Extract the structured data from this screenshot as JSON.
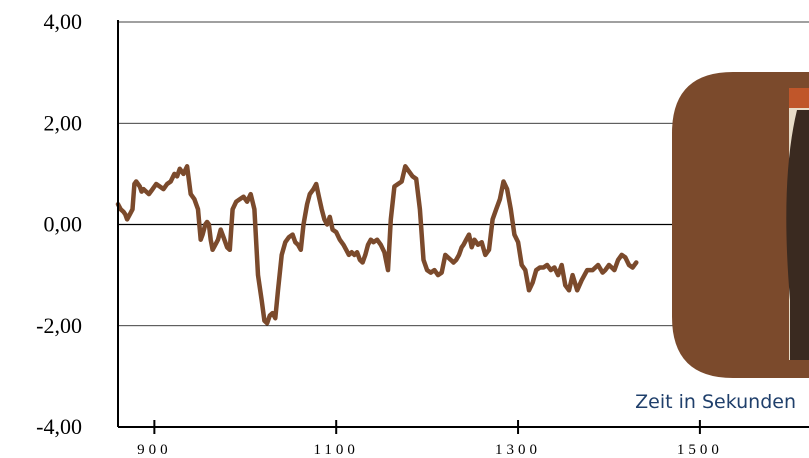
{
  "chart_data": {
    "type": "line",
    "title": "",
    "xlabel": "Zeit in Sekunden",
    "ylabel": "",
    "xlim": [
      860,
      1620
    ],
    "ylim": [
      -4,
      4
    ],
    "y_ticks": [
      {
        "value": 4,
        "label": "4,00"
      },
      {
        "value": 2,
        "label": "2,00"
      },
      {
        "value": 0,
        "label": "0,00"
      },
      {
        "value": -2,
        "label": "-2,00"
      },
      {
        "value": -4,
        "label": "-4,00"
      }
    ],
    "x_ticks": [
      {
        "value": 900,
        "label": "900"
      },
      {
        "value": 1100,
        "label": "1100"
      },
      {
        "value": 1300,
        "label": "1300"
      },
      {
        "value": 1500,
        "label": "1500"
      }
    ],
    "grid": "horizontal",
    "series": [
      {
        "color": "#7b4a2c",
        "x": [
          860,
          863,
          866,
          868,
          870,
          873,
          876,
          878,
          880,
          882,
          884,
          886,
          888,
          891,
          894,
          898,
          902,
          906,
          910,
          914,
          918,
          922,
          925,
          928,
          932,
          936,
          940,
          944,
          948,
          951,
          953,
          956,
          958,
          960,
          962,
          964,
          967,
          970,
          973,
          976,
          980,
          983,
          986,
          990,
          994,
          998,
          1002,
          1006,
          1010,
          1014,
          1018,
          1021,
          1024,
          1027,
          1030,
          1033,
          1036,
          1040,
          1044,
          1048,
          1052,
          1055,
          1058,
          1061,
          1064,
          1068,
          1071,
          1075,
          1078,
          1081,
          1084,
          1087,
          1090,
          1093,
          1096,
          1100,
          1104,
          1108,
          1111,
          1114,
          1117,
          1120,
          1123,
          1126,
          1129,
          1132,
          1135,
          1138,
          1141,
          1145,
          1149,
          1153,
          1157,
          1160,
          1164,
          1168,
          1172,
          1176,
          1180,
          1184,
          1188,
          1192,
          1196,
          1200,
          1204,
          1208,
          1212,
          1216,
          1220,
          1223,
          1226,
          1229,
          1232,
          1235,
          1238,
          1240,
          1243,
          1246,
          1249,
          1252,
          1256,
          1260,
          1264,
          1268,
          1272,
          1276,
          1280,
          1284,
          1288,
          1292,
          1296,
          1300,
          1304,
          1308,
          1312,
          1316,
          1320,
          1324,
          1328,
          1332,
          1336,
          1340,
          1344,
          1348,
          1352,
          1356,
          1360,
          1365,
          1370,
          1376,
          1382,
          1388,
          1393,
          1396,
          1400,
          1403,
          1406,
          1410,
          1414,
          1418,
          1422,
          1426,
          1430
        ],
        "y": [
          0.4,
          0.3,
          0.25,
          0.2,
          0.1,
          0.2,
          0.3,
          0.8,
          0.85,
          0.8,
          0.75,
          0.65,
          0.7,
          0.65,
          0.6,
          0.7,
          0.8,
          0.75,
          0.7,
          0.8,
          0.85,
          1.0,
          0.95,
          1.1,
          1.0,
          1.15,
          0.6,
          0.5,
          0.3,
          -0.3,
          -0.2,
          0.0,
          0.05,
          0.0,
          -0.3,
          -0.5,
          -0.4,
          -0.3,
          -0.1,
          -0.25,
          -0.45,
          -0.5,
          0.3,
          0.45,
          0.5,
          0.55,
          0.45,
          0.6,
          0.3,
          -1.0,
          -1.5,
          -1.9,
          -1.95,
          -1.8,
          -1.75,
          -1.85,
          -1.3,
          -0.6,
          -0.35,
          -0.25,
          -0.2,
          -0.35,
          -0.4,
          -0.5,
          0.0,
          0.4,
          0.6,
          0.7,
          0.8,
          0.55,
          0.3,
          0.1,
          0.0,
          0.15,
          -0.1,
          -0.15,
          -0.3,
          -0.4,
          -0.5,
          -0.6,
          -0.55,
          -0.6,
          -0.55,
          -0.7,
          -0.75,
          -0.6,
          -0.4,
          -0.3,
          -0.35,
          -0.3,
          -0.4,
          -0.55,
          -0.9,
          0.1,
          0.75,
          0.8,
          0.85,
          1.15,
          1.05,
          0.95,
          0.9,
          0.3,
          -0.7,
          -0.9,
          -0.95,
          -0.9,
          -1.0,
          -0.95,
          -0.6,
          -0.65,
          -0.7,
          -0.75,
          -0.7,
          -0.6,
          -0.45,
          -0.4,
          -0.3,
          -0.2,
          -0.45,
          -0.3,
          -0.4,
          -0.35,
          -0.6,
          -0.5,
          0.1,
          0.3,
          0.5,
          0.85,
          0.7,
          0.3,
          -0.2,
          -0.35,
          -0.8,
          -0.9,
          -1.3,
          -1.15,
          -0.9,
          -0.85,
          -0.85,
          -0.8,
          -0.9,
          -0.85,
          -1.0,
          -0.8,
          -1.2,
          -1.3,
          -1.0,
          -1.3,
          -1.1,
          -0.9,
          -0.9,
          -0.8,
          -0.95,
          -0.9,
          -0.8,
          -0.85,
          -0.9,
          -0.7,
          -0.6,
          -0.65,
          -0.8,
          -0.85,
          -0.75
        ]
      }
    ]
  },
  "overlay": {
    "fill": "#7b4a2c",
    "inner_fill": "#e8dcc8",
    "inner_shadow": "#3a2a20",
    "accent": "#c0562a"
  }
}
